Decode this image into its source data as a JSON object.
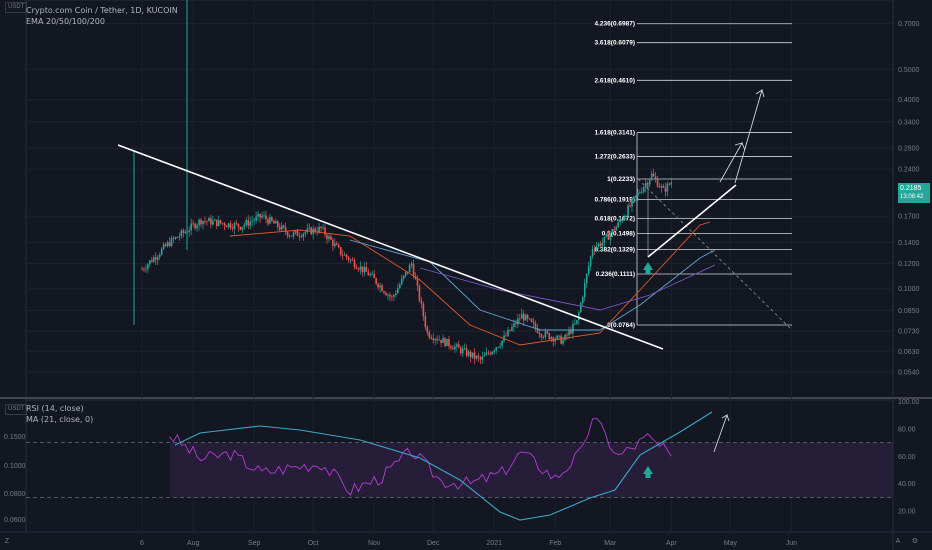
{
  "header": {
    "title": "Crypto.com Coin / Tether, 1D, KUCOIN",
    "indicator_ema": "EMA 20/50/100/200",
    "indicator_rsi": "RSI (14, close)",
    "indicator_ma": "MA (21, close, 0)",
    "currency_badge": "USDT"
  },
  "last_price": {
    "value": "0.2185",
    "countdown": "13:08:42",
    "color": "#26a69a"
  },
  "sidebar": {
    "zoom_icon": "Z",
    "auto_label": "A",
    "settings_icon": "gear-icon"
  },
  "colors": {
    "background": "#131722",
    "up_candle": "#26a69a",
    "down_candle": "#ef5350",
    "trendline": "#ffffff",
    "rsi_line": "#b23fd1",
    "rsi_ma_line": "#3aa7c9",
    "rsi_band_fill": "#2a1f3d",
    "ema20": "#8e44ad",
    "ema50": "#e05a2b",
    "ema100": "#5ea7d4",
    "ema200": "#7e57c2"
  },
  "chart_data": [
    {
      "type": "line",
      "title": "Crypto.com Coin / Tether, 1D, KUCOIN",
      "scale": "log",
      "price_axis_labels": [
        "0.7000",
        "0.5000",
        "0.4000",
        "0.3400",
        "0.2800",
        "0.2400",
        "0.1700",
        "0.1400",
        "0.1200",
        "0.1000",
        "0.0850",
        "0.0730",
        "0.0630",
        "0.0540"
      ],
      "time_axis_labels": [
        "6",
        "Aug",
        "Sep",
        "Oct",
        "Nov",
        "Dec",
        "2021",
        "Feb",
        "Mar",
        "Apr",
        "May",
        "Jun"
      ],
      "fib_levels": [
        {
          "label": "0(0.0764)",
          "value": 0.0764
        },
        {
          "label": "0.236(0.1111)",
          "value": 0.1111
        },
        {
          "label": "0.382(0.1329)",
          "value": 0.1329
        },
        {
          "label": "0.5(0.1498)",
          "value": 0.1498
        },
        {
          "label": "0.618(0.1672)",
          "value": 0.1672
        },
        {
          "label": "0.786(0.1919)",
          "value": 0.1919
        },
        {
          "label": "1(0.2233)",
          "value": 0.2233
        },
        {
          "label": "1.272(0.2633)",
          "value": 0.2633
        },
        {
          "label": "1.618(0.3141)",
          "value": 0.3141
        },
        {
          "label": "2.618(0.4610)",
          "value": 0.461
        },
        {
          "label": "3.618(0.6079)",
          "value": 0.6079
        },
        {
          "label": "4.236(0.6987)",
          "value": 0.6987
        }
      ],
      "price_series_approx": [
        {
          "t": "2020-07-06",
          "v": 0.115
        },
        {
          "t": "2020-07-20",
          "v": 0.14
        },
        {
          "t": "2020-08-05",
          "v": 0.165
        },
        {
          "t": "2020-08-25",
          "v": 0.158
        },
        {
          "t": "2020-09-05",
          "v": 0.17
        },
        {
          "t": "2020-09-20",
          "v": 0.148
        },
        {
          "t": "2020-10-05",
          "v": 0.155
        },
        {
          "t": "2020-10-15",
          "v": 0.13
        },
        {
          "t": "2020-10-30",
          "v": 0.11
        },
        {
          "t": "2020-11-10",
          "v": 0.093
        },
        {
          "t": "2020-11-20",
          "v": 0.12
        },
        {
          "t": "2020-11-28",
          "v": 0.072
        },
        {
          "t": "2020-12-10",
          "v": 0.066
        },
        {
          "t": "2020-12-25",
          "v": 0.059
        },
        {
          "t": "2021-01-05",
          "v": 0.068
        },
        {
          "t": "2021-01-15",
          "v": 0.082
        },
        {
          "t": "2021-01-25",
          "v": 0.072
        },
        {
          "t": "2021-02-05",
          "v": 0.068
        },
        {
          "t": "2021-02-12",
          "v": 0.078
        },
        {
          "t": "2021-02-20",
          "v": 0.135
        },
        {
          "t": "2021-02-25",
          "v": 0.14
        },
        {
          "t": "2021-03-05",
          "v": 0.16
        },
        {
          "t": "2021-03-15",
          "v": 0.2
        },
        {
          "t": "2021-03-22",
          "v": 0.23
        },
        {
          "t": "2021-03-28",
          "v": 0.205
        },
        {
          "t": "2021-04-01",
          "v": 0.2185
        }
      ]
    },
    {
      "type": "line",
      "title": "RSI (14, close)",
      "rsi_axis_labels": [
        "100.00",
        "80.00",
        "60.00",
        "40.00",
        "20.00"
      ],
      "rsi_left_axis_labels": [
        "0.1500",
        "0.1000",
        "0.0800",
        "0.0600"
      ],
      "band": [
        30,
        70
      ],
      "rsi_series_approx": [
        {
          "t": "2020-07-20",
          "v": 76
        },
        {
          "t": "2020-08-05",
          "v": 58
        },
        {
          "t": "2020-08-20",
          "v": 62
        },
        {
          "t": "2020-09-05",
          "v": 48
        },
        {
          "t": "2020-09-20",
          "v": 52
        },
        {
          "t": "2020-10-05",
          "v": 55
        },
        {
          "t": "2020-10-20",
          "v": 35
        },
        {
          "t": "2020-11-05",
          "v": 45
        },
        {
          "t": "2020-11-20",
          "v": 64
        },
        {
          "t": "2020-12-05",
          "v": 42
        },
        {
          "t": "2020-12-20",
          "v": 40
        },
        {
          "t": "2021-01-05",
          "v": 48
        },
        {
          "t": "2021-01-15",
          "v": 63
        },
        {
          "t": "2021-02-01",
          "v": 44
        },
        {
          "t": "2021-02-15",
          "v": 64
        },
        {
          "t": "2021-02-20",
          "v": 90
        },
        {
          "t": "2021-03-05",
          "v": 60
        },
        {
          "t": "2021-03-20",
          "v": 74
        },
        {
          "t": "2021-04-01",
          "v": 60
        }
      ]
    }
  ]
}
